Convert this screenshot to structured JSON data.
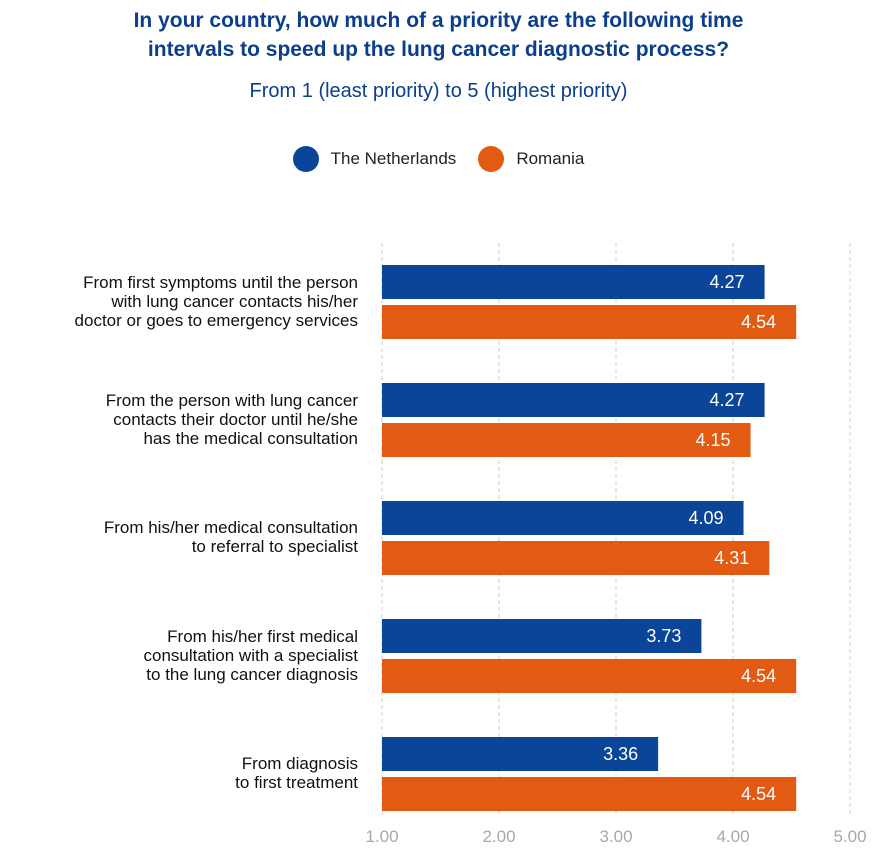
{
  "chart_data": {
    "type": "bar",
    "orientation": "horizontal",
    "title_lines": [
      "In your country, how much of a priority are the following time",
      "intervals to speed up the lung cancer diagnostic process?"
    ],
    "subtitle": "From 1 (least priority) to 5 (highest priority)",
    "legend_position": "top-center",
    "grid": "vertical-dashed",
    "categories": [
      [
        "From first symptoms until the person",
        "with lung cancer contacts his/her",
        "doctor or goes to emergency services"
      ],
      [
        "From the person with lung cancer",
        "contacts their doctor until he/she",
        "has the medical consultation"
      ],
      [
        "From his/her medical consultation",
        "to referral to specialist"
      ],
      [
        "From his/her first medical",
        "consultation with a specialist",
        "to the lung cancer diagnosis"
      ],
      [
        "From diagnosis",
        "to first treatment"
      ]
    ],
    "series": [
      {
        "name": "The Netherlands",
        "color": "#0b4599",
        "values": [
          4.27,
          4.27,
          4.09,
          3.73,
          3.36
        ],
        "labels": [
          "4.27",
          "4.27",
          "4.09",
          "3.73",
          "3.36"
        ]
      },
      {
        "name": "Romania",
        "color": "#e35a12",
        "values": [
          4.54,
          4.15,
          4.31,
          4.54,
          4.54
        ],
        "labels": [
          "4.54",
          "4.15",
          "4.31",
          "4.54",
          "4.54"
        ]
      }
    ],
    "xlim": [
      1.0,
      5.0
    ],
    "xticks": [
      1,
      2,
      3,
      4,
      5
    ],
    "xtick_labels": [
      "1.00",
      "2.00",
      "3.00",
      "4.00",
      "5.00"
    ]
  }
}
